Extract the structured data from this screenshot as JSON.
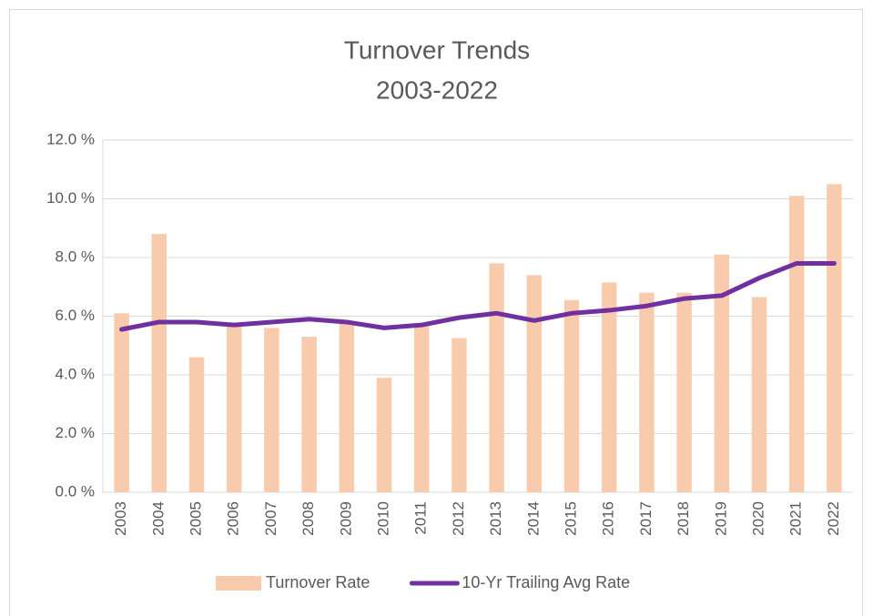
{
  "chart_data": {
    "type": "combo",
    "title": "Turnover Trends",
    "subtitle": "2003-2022",
    "categories": [
      "2003",
      "2004",
      "2005",
      "2006",
      "2007",
      "2008",
      "2009",
      "2010",
      "2011",
      "2012",
      "2013",
      "2014",
      "2015",
      "2016",
      "2017",
      "2018",
      "2019",
      "2020",
      "2021",
      "2022"
    ],
    "series": [
      {
        "name": "Turnover Rate",
        "type": "bar",
        "color": "#f8cbad",
        "values": [
          6.1,
          8.8,
          4.6,
          5.7,
          5.6,
          5.3,
          5.8,
          3.9,
          5.7,
          5.25,
          7.8,
          7.4,
          6.55,
          7.15,
          6.8,
          6.8,
          8.1,
          6.65,
          10.1,
          10.5
        ]
      },
      {
        "name": "10-Yr Trailing Avg Rate",
        "type": "line",
        "color": "#7030a0",
        "values": [
          5.55,
          5.8,
          5.8,
          5.7,
          5.8,
          5.9,
          5.8,
          5.6,
          5.7,
          5.95,
          6.1,
          5.85,
          6.1,
          6.2,
          6.35,
          6.6,
          6.7,
          7.3,
          7.8,
          7.8
        ]
      }
    ],
    "ylim": [
      0,
      12
    ],
    "yticks": [
      {
        "value": 0,
        "label": "0.0 %"
      },
      {
        "value": 2,
        "label": "2.0 %"
      },
      {
        "value": 4,
        "label": "4.0 %"
      },
      {
        "value": 6,
        "label": "6.0 %"
      },
      {
        "value": 8,
        "label": "8.0 %"
      },
      {
        "value": 10,
        "label": "10.0 %"
      },
      {
        "value": 12,
        "label": "12.0 %"
      }
    ],
    "grid": true,
    "legend": "bottom"
  }
}
